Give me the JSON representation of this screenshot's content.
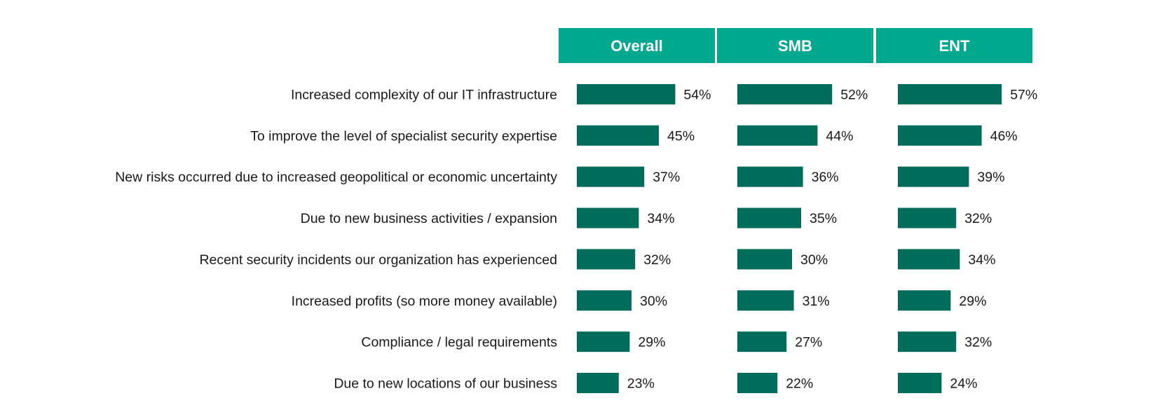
{
  "chart_data": {
    "type": "bar",
    "orientation": "horizontal",
    "title": "",
    "xlabel": "",
    "ylabel": "",
    "value_suffix": "%",
    "xlim": [
      0,
      100
    ],
    "grid": false,
    "legend": "none",
    "colors": {
      "header": "#00a88e",
      "bar": "#006d5b",
      "text": "#1a1a1a"
    },
    "categories": [
      "Increased complexity of our IT infrastructure",
      "To improve the level of specialist security expertise",
      "New risks occurred due to increased geopolitical or economic uncertainty",
      "Due to new business activities / expansion",
      "Recent security incidents our organization has experienced",
      "Increased profits (so more money available)",
      "Compliance / legal requirements",
      "Due to new locations of our business"
    ],
    "series": [
      {
        "name": "Overall",
        "values": [
          54,
          45,
          37,
          34,
          32,
          30,
          29,
          23
        ]
      },
      {
        "name": "SMB",
        "values": [
          52,
          44,
          36,
          35,
          30,
          31,
          27,
          22
        ]
      },
      {
        "name": "ENT",
        "values": [
          57,
          46,
          39,
          32,
          34,
          29,
          32,
          24
        ]
      }
    ]
  }
}
